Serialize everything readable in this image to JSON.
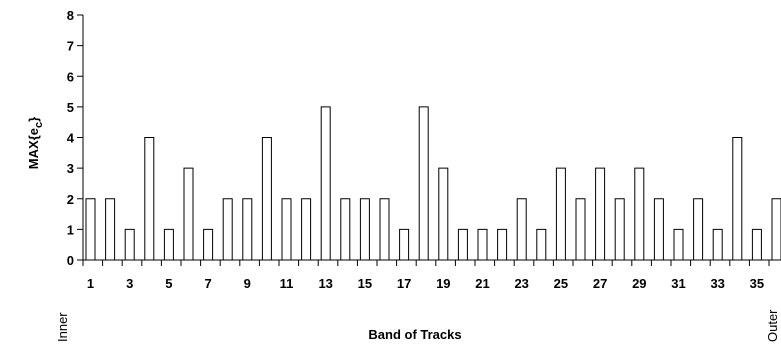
{
  "chart_data": {
    "type": "bar",
    "xlabel": "Band of Tracks",
    "ylabel": "MAX{e",
    "ylabel_sub": "c",
    "ylabel_close": "}",
    "ylim": [
      0,
      8
    ],
    "yticks": [
      0,
      1,
      2,
      3,
      4,
      5,
      6,
      7,
      8
    ],
    "x_tick_labels": [
      "1",
      "3",
      "5",
      "7",
      "9",
      "11",
      "13",
      "15",
      "17",
      "19",
      "21",
      "23",
      "25",
      "27",
      "29",
      "31",
      "33",
      "35"
    ],
    "left_end_label": "Inner",
    "right_end_label": "Outer",
    "categories": [
      1,
      2,
      3,
      4,
      5,
      6,
      7,
      8,
      9,
      10,
      11,
      12,
      13,
      14,
      15,
      16,
      17,
      18,
      19,
      20,
      21,
      22,
      23,
      24,
      25,
      26,
      27,
      28,
      29,
      30,
      31,
      32,
      33,
      34,
      35,
      36
    ],
    "values": [
      2,
      2,
      1,
      4,
      1,
      3,
      1,
      2,
      2,
      4,
      2,
      2,
      5,
      2,
      2,
      2,
      1,
      5,
      3,
      1,
      1,
      1,
      2,
      1,
      3,
      2,
      3,
      2,
      3,
      2,
      1,
      2,
      1,
      4,
      1,
      2
    ],
    "grid": false,
    "bar_fill": "#ffffff",
    "bar_stroke": "#000000"
  }
}
